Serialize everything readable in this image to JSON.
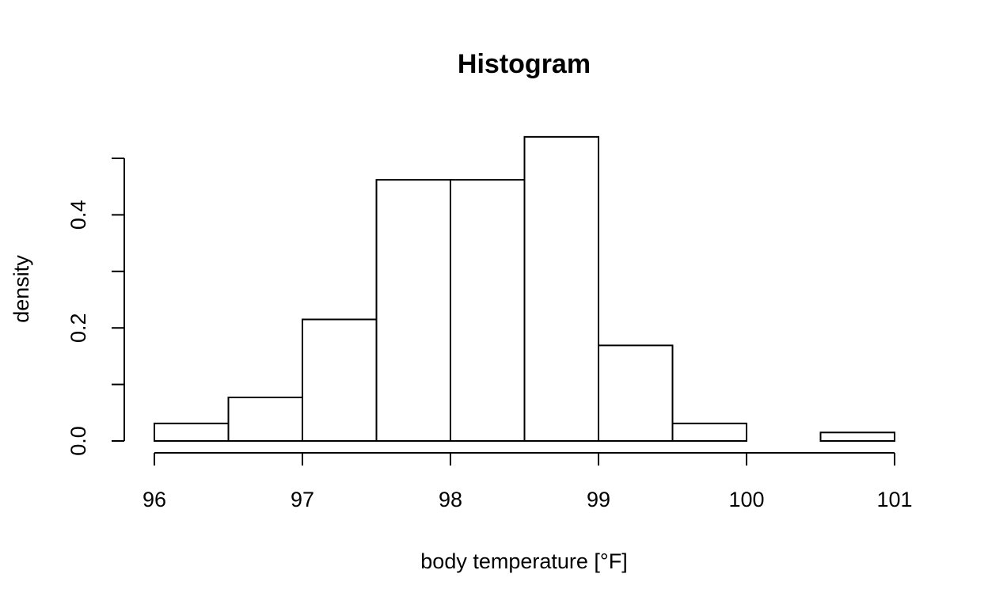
{
  "chart_data": {
    "type": "bar",
    "title": "Histogram",
    "xlabel": "body temperature [°F]",
    "ylabel": "density",
    "bins": [
      {
        "start": 96.0,
        "end": 96.5,
        "density": 0.031
      },
      {
        "start": 96.5,
        "end": 97.0,
        "density": 0.077
      },
      {
        "start": 97.0,
        "end": 97.5,
        "density": 0.215
      },
      {
        "start": 97.5,
        "end": 98.0,
        "density": 0.462
      },
      {
        "start": 98.0,
        "end": 98.5,
        "density": 0.462
      },
      {
        "start": 98.5,
        "end": 99.0,
        "density": 0.538
      },
      {
        "start": 99.0,
        "end": 99.5,
        "density": 0.169
      },
      {
        "start": 99.5,
        "end": 100.0,
        "density": 0.031
      },
      {
        "start": 100.0,
        "end": 100.5,
        "density": 0.0
      },
      {
        "start": 100.5,
        "end": 101.0,
        "density": 0.015
      }
    ],
    "xlim": [
      96,
      101
    ],
    "ylim": [
      0,
      0.5
    ],
    "x_ticks": [
      96,
      97,
      98,
      99,
      100,
      101
    ],
    "x_tick_labels": [
      "96",
      "97",
      "98",
      "99",
      "100",
      "101"
    ],
    "y_ticks": [
      0.0,
      0.1,
      0.2,
      0.3,
      0.4,
      0.5
    ],
    "y_tick_labels": [
      "0.0",
      "",
      "0.2",
      "",
      "0.4",
      ""
    ],
    "grid": false,
    "legend": "none"
  }
}
